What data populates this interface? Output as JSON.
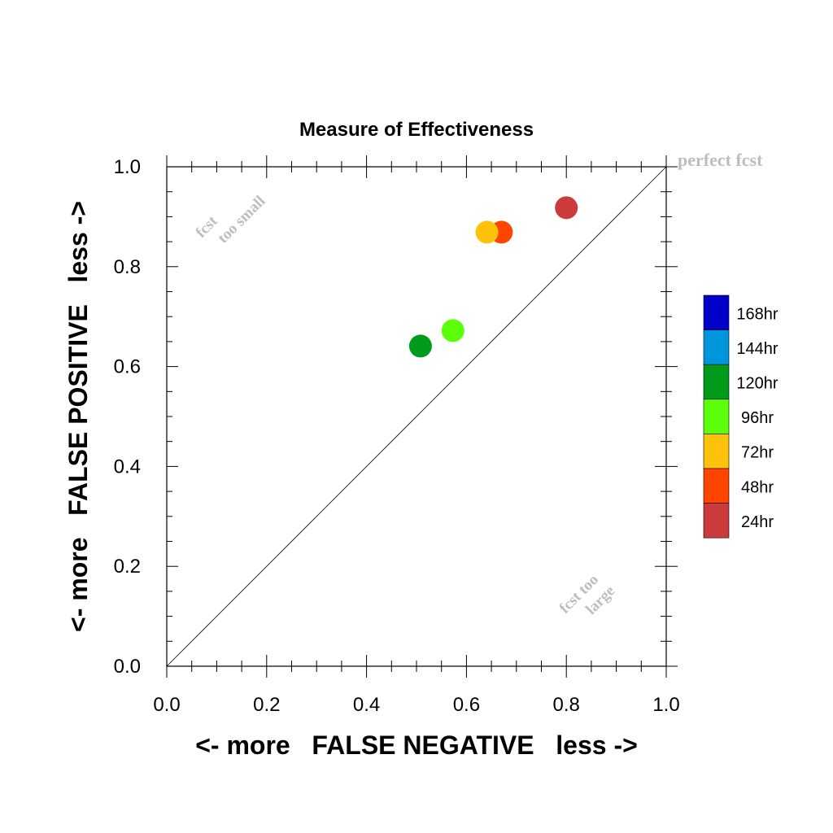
{
  "chart_data": {
    "type": "scatter",
    "title": "Measure of Effectiveness",
    "xlabel": "<- more   FALSE NEGATIVE   less ->",
    "ylabel": "<- more   FALSE POSITIVE   less ->",
    "xlim": [
      0,
      1
    ],
    "ylim": [
      0,
      1
    ],
    "xticks": [
      "0.0",
      "0.2",
      "0.4",
      "0.6",
      "0.8",
      "1.0"
    ],
    "yticks": [
      "0.0",
      "0.2",
      "0.4",
      "0.6",
      "0.8",
      "1.0"
    ],
    "grid": false,
    "reference_line": "diagonal",
    "annotations": {
      "perfect": "perfect fcst",
      "too_small": [
        "fcst",
        "too small"
      ],
      "too_large": [
        "fcst too",
        "large"
      ]
    },
    "series": [
      {
        "name": "24hr",
        "color": "#cc3b3b",
        "x": 0.8,
        "y": 0.918
      },
      {
        "name": "48hr",
        "color": "#ff4500",
        "x": 0.67,
        "y": 0.869
      },
      {
        "name": "72hr",
        "color": "#ffc20a",
        "x": 0.641,
        "y": 0.869
      },
      {
        "name": "96hr",
        "color": "#5cff0a",
        "x": 0.573,
        "y": 0.672
      },
      {
        "name": "120hr",
        "color": "#009b1a",
        "x": 0.508,
        "y": 0.641
      }
    ],
    "legend": {
      "placement": "right",
      "items": [
        {
          "label": "168hr",
          "color": "#0000c8"
        },
        {
          "label": "144hr",
          "color": "#0096dc"
        },
        {
          "label": "120hr",
          "color": "#009b1a"
        },
        {
          "label": "96hr",
          "color": "#5cff0a"
        },
        {
          "label": "72hr",
          "color": "#ffc20a"
        },
        {
          "label": "48hr",
          "color": "#ff4500"
        },
        {
          "label": "24hr",
          "color": "#cc3b3b"
        }
      ]
    }
  }
}
